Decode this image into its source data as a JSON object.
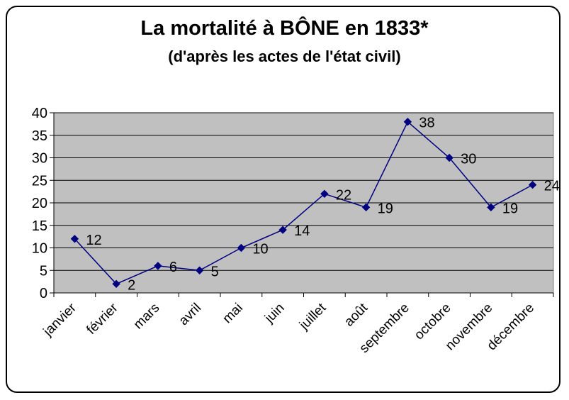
{
  "chart_data": {
    "type": "line",
    "title": "La mortalité à BÔNE en 1833*",
    "subtitle": "(d'après les actes de l'état civil)",
    "xlabel": "",
    "ylabel": "",
    "categories": [
      "janvier",
      "février",
      "mars",
      "avril",
      "mai",
      "juin",
      "juillet",
      "août",
      "septembre",
      "octobre",
      "novembre",
      "décembre"
    ],
    "series": [
      {
        "values": [
          12,
          2,
          6,
          5,
          10,
          14,
          22,
          19,
          38,
          30,
          19,
          24
        ]
      }
    ],
    "data_labels": [
      "12",
      "2",
      "6",
      "5",
      "10",
      "14",
      "22",
      "19",
      "38",
      "30",
      "19",
      "24"
    ],
    "ylim": [
      0,
      40
    ],
    "yticks": [
      "0",
      "5",
      "10",
      "15",
      "20",
      "25",
      "30",
      "35",
      "40"
    ],
    "grid": true,
    "legend": "none",
    "colors": {
      "line": "#000080",
      "marker": "#000080",
      "plot_area": "#c0c0c0",
      "gridline": "#000000"
    }
  }
}
